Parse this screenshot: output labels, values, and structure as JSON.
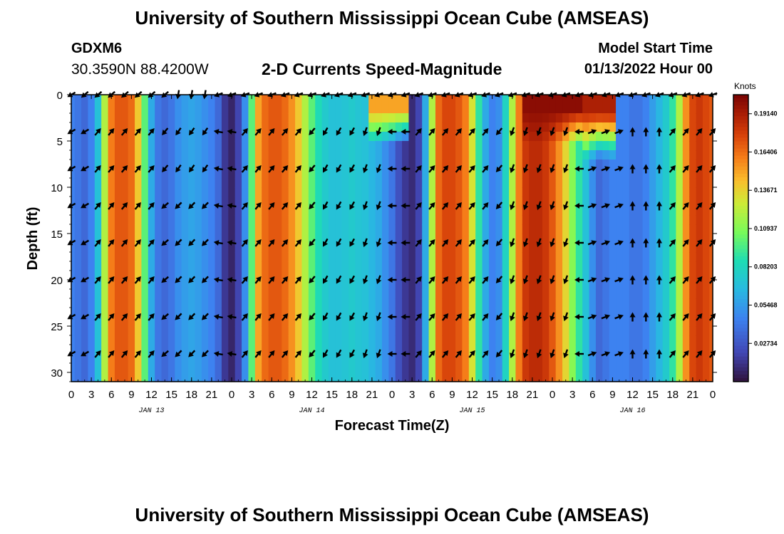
{
  "header": {
    "title": "University of Southern Mississippi Ocean Cube (AMSEAS)",
    "station_name": "GDXM6",
    "station_coords": "30.3590N  88.4200W",
    "subtitle": "2-D Currents Speed-Magnitude",
    "model_start_label": "Model Start Time",
    "model_start_value": "01/13/2022 Hour 00"
  },
  "footer": {
    "title": "University of Southern Mississippi Ocean Cube (AMSEAS)"
  },
  "chart_data": {
    "type": "heatmap",
    "title": "2-D Currents Speed-Magnitude",
    "xlabel": "Forecast Time(Z)",
    "ylabel": "Depth (ft)",
    "x_range_hours": [
      0,
      96
    ],
    "ylim": [
      31,
      0
    ],
    "x_tick_hours": [
      0,
      3,
      6,
      9,
      12,
      15,
      18,
      21,
      24,
      27,
      30,
      33,
      36,
      39,
      42,
      45,
      48,
      51,
      54,
      57,
      60,
      63,
      66,
      69,
      72,
      75,
      78,
      81,
      84,
      87,
      90,
      93,
      96
    ],
    "x_tick_labels": [
      "0",
      "3",
      "6",
      "9",
      "12",
      "15",
      "18",
      "21",
      "0",
      "3",
      "6",
      "9",
      "12",
      "15",
      "18",
      "21",
      "0",
      "3",
      "6",
      "9",
      "12",
      "15",
      "18",
      "21",
      "0",
      "3",
      "6",
      "9",
      "12",
      "15",
      "18",
      "21",
      "0"
    ],
    "date_labels": [
      {
        "hour": 12,
        "text": "JAN 13"
      },
      {
        "hour": 36,
        "text": "JAN 14"
      },
      {
        "hour": 60,
        "text": "JAN 15"
      },
      {
        "hour": 84,
        "text": "JAN 16"
      }
    ],
    "y_ticks": [
      0,
      5,
      10,
      15,
      20,
      25,
      30
    ],
    "y_tick_labels": [
      "0",
      "5",
      "10",
      "15",
      "20",
      "25",
      "30"
    ],
    "colorbar": {
      "unit": "Knots",
      "min": 0.0,
      "max": 0.205,
      "ticks": [
        0.02734,
        0.05468,
        0.08203,
        0.10937,
        0.13671,
        0.16406,
        0.1914
      ],
      "tick_labels": [
        "0.02734",
        "0.05468",
        "0.08203",
        "0.10937",
        "0.13671",
        "0.16406",
        "0.19140"
      ]
    },
    "speed_profile_hours": [
      0,
      1,
      2,
      3,
      4,
      5,
      6,
      7,
      8,
      9,
      10,
      11,
      12,
      13,
      14,
      15,
      16,
      17,
      18,
      19,
      20,
      21,
      22,
      23,
      24,
      25,
      26,
      27,
      28,
      29,
      30,
      31,
      32,
      33,
      34,
      35,
      36,
      37,
      38,
      39,
      40,
      41,
      42,
      43,
      44,
      45,
      46,
      47,
      48,
      49,
      50,
      51,
      52,
      53,
      54,
      55,
      56,
      57,
      58,
      59,
      60,
      61,
      62,
      63,
      64,
      65,
      66,
      67,
      68,
      69,
      70,
      71,
      72,
      73,
      74,
      75,
      76,
      77,
      78,
      79,
      80,
      81,
      82,
      83,
      84,
      85,
      86,
      87,
      88,
      89,
      90,
      91,
      92,
      93,
      94,
      95,
      96
    ],
    "speed_profile_knots": [
      0.045,
      0.04,
      0.035,
      0.045,
      0.07,
      0.12,
      0.16,
      0.17,
      0.17,
      0.165,
      0.14,
      0.1,
      0.06,
      0.04,
      0.035,
      0.04,
      0.05,
      0.055,
      0.058,
      0.055,
      0.05,
      0.045,
      0.035,
      0.015,
      0.008,
      0.02,
      0.05,
      0.1,
      0.15,
      0.165,
      0.17,
      0.17,
      0.165,
      0.155,
      0.14,
      0.12,
      0.1,
      0.085,
      0.075,
      0.07,
      0.07,
      0.072,
      0.075,
      0.072,
      0.07,
      0.065,
      0.06,
      0.05,
      0.04,
      0.025,
      0.015,
      0.01,
      0.02,
      0.06,
      0.12,
      0.165,
      0.175,
      0.175,
      0.17,
      0.16,
      0.13,
      0.09,
      0.06,
      0.045,
      0.05,
      0.08,
      0.12,
      0.16,
      0.18,
      0.185,
      0.185,
      0.18,
      0.17,
      0.155,
      0.135,
      0.11,
      0.09,
      0.07,
      0.05,
      0.035,
      0.04,
      0.045,
      0.045,
      0.045,
      0.04,
      0.04,
      0.045,
      0.055,
      0.065,
      0.075,
      0.09,
      0.12,
      0.155,
      0.175,
      0.18,
      0.175,
      0.17
    ],
    "surface_anomalies": [
      {
        "hours": [
          45,
          50
        ],
        "depth_max_ft": 5,
        "speed_knots": 0.15
      },
      {
        "hours": [
          68,
          76
        ],
        "depth_max_ft": 5,
        "speed_knots": 0.2
      },
      {
        "hours": [
          77,
          81
        ],
        "depth_max_ft": 6.5,
        "speed_knots": 0.19
      }
    ],
    "vector_depths_ft": [
      0,
      4,
      8,
      12,
      16,
      20,
      24,
      28
    ],
    "vector_hours": [
      0,
      2,
      4,
      6,
      8,
      10,
      12,
      14,
      16,
      18,
      20,
      22,
      24,
      26,
      28,
      30,
      32,
      34,
      36,
      38,
      40,
      42,
      44,
      46,
      48,
      50,
      52,
      54,
      56,
      58,
      60,
      62,
      64,
      66,
      68,
      70,
      72,
      74,
      76,
      78,
      80,
      82,
      84,
      86,
      88,
      90,
      92,
      94,
      96
    ],
    "vector_direction_deg": [
      [
        240,
        240,
        240,
        240,
        240,
        240,
        240,
        240
      ],
      [
        230,
        240,
        240,
        240,
        240,
        240,
        240,
        240
      ],
      [
        230,
        40,
        40,
        40,
        40,
        40,
        40,
        40
      ],
      [
        230,
        40,
        40,
        40,
        40,
        40,
        40,
        40
      ],
      [
        230,
        40,
        40,
        40,
        40,
        40,
        40,
        40
      ],
      [
        230,
        40,
        40,
        40,
        40,
        40,
        40,
        40
      ],
      [
        230,
        40,
        40,
        40,
        40,
        40,
        40,
        40
      ],
      [
        230,
        220,
        220,
        230,
        230,
        230,
        230,
        230
      ],
      [
        190,
        215,
        215,
        225,
        225,
        225,
        225,
        225
      ],
      [
        190,
        215,
        215,
        225,
        225,
        225,
        225,
        225
      ],
      [
        190,
        215,
        215,
        225,
        225,
        225,
        225,
        225
      ],
      [
        250,
        280,
        280,
        280,
        280,
        280,
        280,
        280
      ],
      [
        250,
        280,
        280,
        280,
        280,
        280,
        280,
        280
      ],
      [
        250,
        40,
        40,
        40,
        40,
        40,
        40,
        40
      ],
      [
        250,
        40,
        40,
        40,
        40,
        40,
        40,
        40
      ],
      [
        250,
        40,
        40,
        40,
        40,
        40,
        40,
        40
      ],
      [
        250,
        40,
        40,
        40,
        40,
        40,
        40,
        40
      ],
      [
        250,
        40,
        40,
        40,
        40,
        40,
        40,
        40
      ],
      [
        250,
        220,
        220,
        220,
        220,
        220,
        220,
        220
      ],
      [
        250,
        210,
        210,
        210,
        210,
        210,
        210,
        210
      ],
      [
        250,
        210,
        210,
        210,
        210,
        210,
        210,
        210
      ],
      [
        250,
        210,
        210,
        210,
        210,
        210,
        210,
        210
      ],
      [
        250,
        200,
        200,
        200,
        200,
        200,
        200,
        200
      ],
      [
        250,
        200,
        200,
        200,
        200,
        200,
        200,
        200
      ],
      [
        250,
        270,
        270,
        270,
        270,
        270,
        270,
        270
      ],
      [
        250,
        270,
        270,
        270,
        270,
        270,
        270,
        270
      ],
      [
        250,
        40,
        40,
        40,
        40,
        40,
        40,
        40
      ],
      [
        250,
        40,
        40,
        40,
        40,
        40,
        40,
        40
      ],
      [
        250,
        40,
        40,
        40,
        40,
        40,
        40,
        40
      ],
      [
        250,
        40,
        40,
        40,
        40,
        40,
        40,
        40
      ],
      [
        250,
        40,
        40,
        40,
        40,
        40,
        40,
        40
      ],
      [
        250,
        40,
        40,
        40,
        40,
        40,
        40,
        40
      ],
      [
        250,
        220,
        220,
        220,
        220,
        220,
        220,
        220
      ],
      [
        250,
        200,
        200,
        200,
        200,
        200,
        200,
        200
      ],
      [
        250,
        200,
        200,
        200,
        200,
        200,
        200,
        200
      ],
      [
        250,
        200,
        200,
        200,
        200,
        200,
        200,
        200
      ],
      [
        250,
        200,
        200,
        200,
        200,
        200,
        200,
        200
      ],
      [
        250,
        200,
        200,
        200,
        200,
        200,
        200,
        200
      ],
      [
        250,
        270,
        270,
        270,
        270,
        270,
        270,
        270
      ],
      [
        250,
        70,
        70,
        70,
        70,
        70,
        70,
        70
      ],
      [
        250,
        70,
        70,
        70,
        70,
        70,
        70,
        70
      ],
      [
        250,
        70,
        70,
        70,
        70,
        70,
        70,
        70
      ],
      [
        250,
        0,
        0,
        0,
        0,
        0,
        0,
        0
      ],
      [
        250,
        0,
        0,
        0,
        0,
        0,
        0,
        0
      ],
      [
        250,
        0,
        0,
        0,
        0,
        0,
        0,
        0
      ],
      [
        250,
        40,
        40,
        40,
        40,
        40,
        40,
        40
      ],
      [
        250,
        40,
        40,
        40,
        40,
        40,
        40,
        40
      ],
      [
        250,
        40,
        40,
        40,
        40,
        40,
        40,
        40
      ],
      [
        250,
        40,
        40,
        40,
        40,
        40,
        40,
        40
      ]
    ]
  }
}
